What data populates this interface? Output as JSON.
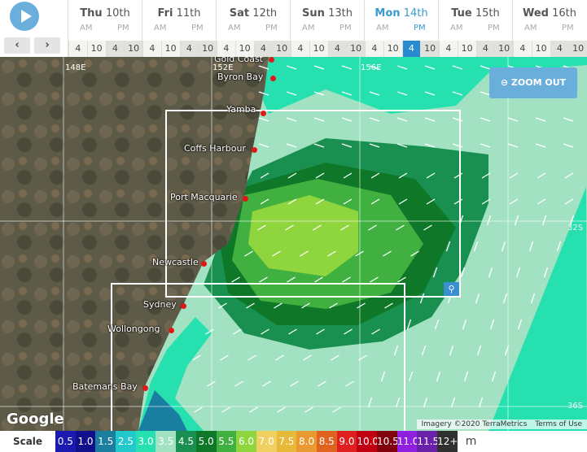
{
  "controls": {
    "play_icon": "play-icon",
    "prev": "‹",
    "next": "›"
  },
  "days": [
    {
      "dow": "Thu",
      "date": "10th",
      "am": "AM",
      "pm": "PM",
      "hours": [
        "4",
        "10",
        "4",
        "10"
      ]
    },
    {
      "dow": "Fri",
      "date": "11th",
      "am": "AM",
      "pm": "PM",
      "hours": [
        "4",
        "10",
        "4",
        "10"
      ]
    },
    {
      "dow": "Sat",
      "date": "12th",
      "am": "AM",
      "pm": "PM",
      "hours": [
        "4",
        "10",
        "4",
        "10"
      ]
    },
    {
      "dow": "Sun",
      "date": "13th",
      "am": "AM",
      "pm": "PM",
      "hours": [
        "4",
        "10",
        "4",
        "10"
      ]
    },
    {
      "dow": "Mon",
      "date": "14th",
      "am": "AM",
      "pm": "PM",
      "hours": [
        "4",
        "10",
        "4",
        "10"
      ],
      "selected": true,
      "selected_hour": "4 PM"
    },
    {
      "dow": "Tue",
      "date": "15th",
      "am": "AM",
      "pm": "PM",
      "hours": [
        "4",
        "10",
        "4",
        "10"
      ]
    },
    {
      "dow": "Wed",
      "date": "16th",
      "am": "AM",
      "pm": "PM",
      "hours": [
        "4",
        "10",
        "4",
        "10"
      ]
    }
  ],
  "map": {
    "zoom_out": "ZOOM OUT",
    "grid_labels": [
      "148E",
      "152E",
      "156E",
      "32S",
      "36S"
    ],
    "cities": [
      "Gold Coast",
      "Byron Bay",
      "Yamba",
      "Coffs Harbour",
      "Port Macquarie",
      "Newcastle",
      "Sydney",
      "Wollongong",
      "Batemans Bay"
    ],
    "logo": "Google",
    "attribution": "Imagery ©2020 TerraMetrics",
    "terms": "Terms of Use"
  },
  "scale": {
    "label": "Scale",
    "unit": "m",
    "items": [
      {
        "v": "0.5",
        "c": "#1a1ab0"
      },
      {
        "v": "1.0",
        "c": "#10108a"
      },
      {
        "v": "1.5",
        "c": "#1a7ea0"
      },
      {
        "v": "2.5",
        "c": "#22c8cc"
      },
      {
        "v": "3.0",
        "c": "#26e0b0"
      },
      {
        "v": "3.5",
        "c": "#a2e2c2"
      },
      {
        "v": "4.5",
        "c": "#1a9050"
      },
      {
        "v": "5.0",
        "c": "#0e7828"
      },
      {
        "v": "5.5",
        "c": "#40b040"
      },
      {
        "v": "6.0",
        "c": "#8fd63e"
      },
      {
        "v": "7.0",
        "c": "#f0d060"
      },
      {
        "v": "7.5",
        "c": "#e8b838"
      },
      {
        "v": "8.0",
        "c": "#e89a30"
      },
      {
        "v": "8.5",
        "c": "#e06420"
      },
      {
        "v": "9.0",
        "c": "#e02020"
      },
      {
        "v": "10.0",
        "c": "#c00010"
      },
      {
        "v": "10.5",
        "c": "#80000e"
      },
      {
        "v": "11.0",
        "c": "#9020e0"
      },
      {
        "v": "11.5",
        "c": "#6a20a8"
      },
      {
        "v": "12+",
        "c": "#303030"
      }
    ]
  }
}
